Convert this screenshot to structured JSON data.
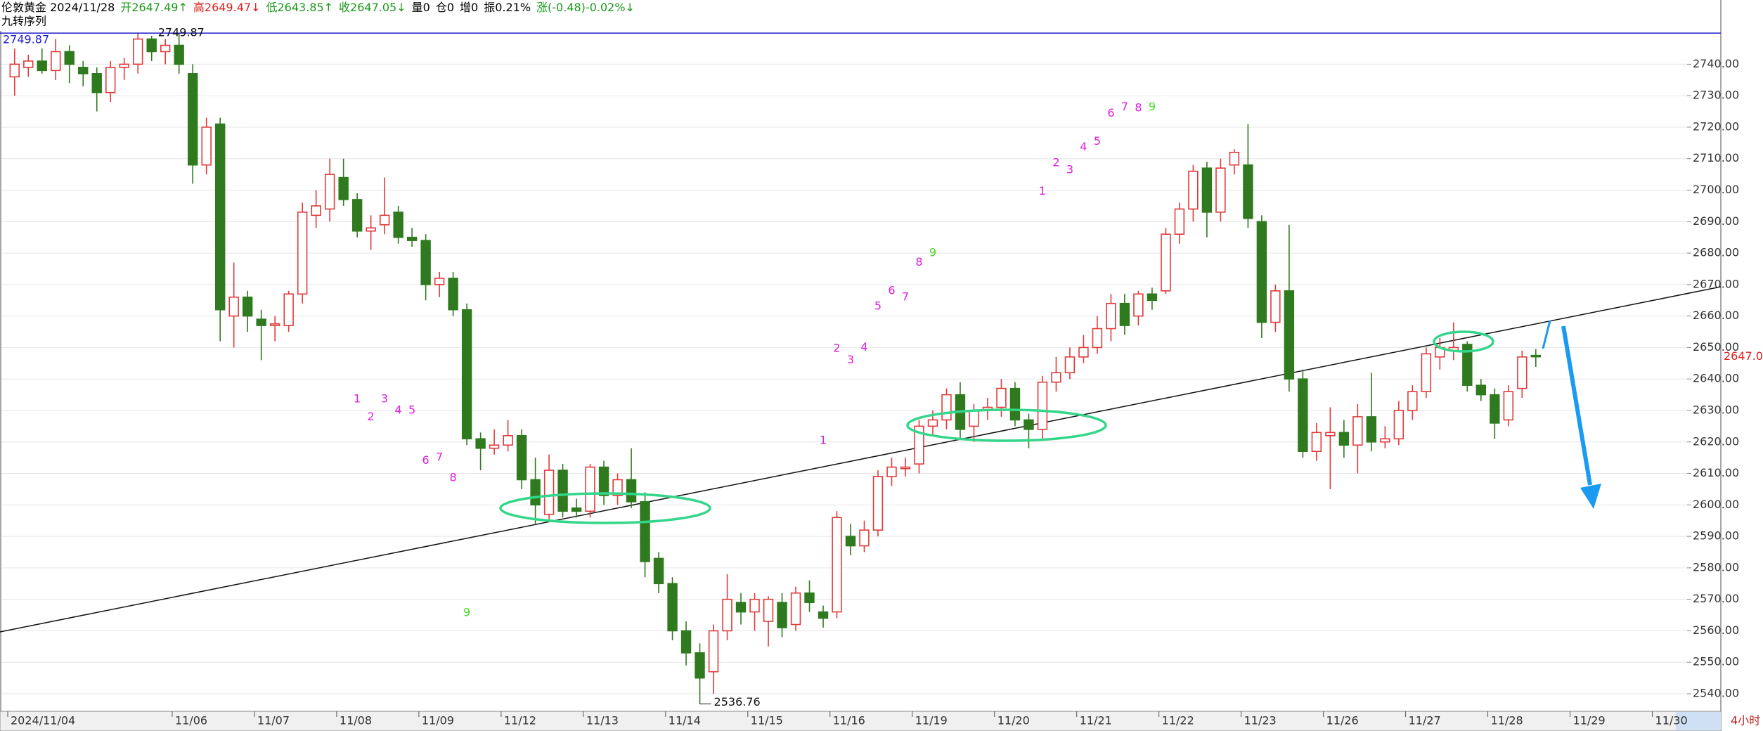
{
  "header": [
    {
      "text": "伦敦黄金 2024/11/28",
      "color": "#000000"
    },
    {
      "text": "开2647.49↑",
      "color": "#1a9a1a"
    },
    {
      "text": "高2649.47↓",
      "color": "#e02020"
    },
    {
      "text": "低2643.85↑",
      "color": "#1a9a1a"
    },
    {
      "text": "收2647.05↓",
      "color": "#1a9a1a"
    },
    {
      "text": "量0",
      "color": "#000000"
    },
    {
      "text": "仓0",
      "color": "#000000"
    },
    {
      "text": "增0",
      "color": "#000000"
    },
    {
      "text": "振0.21%",
      "color": "#000000"
    },
    {
      "text": "涨(-0.48)-0.02%↓",
      "color": "#1a9a1a"
    }
  ],
  "indicator": "九转序列",
  "period": "4小时",
  "chart_data": {
    "type": "candlestick",
    "up_color": "#e03a3a",
    "down_color": "#2f7a1f",
    "td_color": "#e020e0",
    "td_nine_color": "#44dd22",
    "max_line_color": "#2020cc",
    "ylim": [
      2534.6,
      2750.4
    ],
    "yticks": [
      {
        "value": 2540,
        "label": "2540.00"
      },
      {
        "value": 2550,
        "label": "2550.00"
      },
      {
        "value": 2560,
        "label": "2560.00"
      },
      {
        "value": 2570,
        "label": "2570.00"
      },
      {
        "value": 2580,
        "label": "2580.00"
      },
      {
        "value": 2590,
        "label": "2590.00"
      },
      {
        "value": 2600,
        "label": "2600.00"
      },
      {
        "value": 2610,
        "label": "2610.00"
      },
      {
        "value": 2620,
        "label": "2620.00"
      },
      {
        "value": 2630,
        "label": "2630.00"
      },
      {
        "value": 2640,
        "label": "2640.00"
      },
      {
        "value": 2650,
        "label": "2650.00"
      },
      {
        "value": 2660,
        "label": "2660.00"
      },
      {
        "value": 2670,
        "label": "2670.00"
      },
      {
        "value": 2680,
        "label": "2680.00"
      },
      {
        "value": 2690,
        "label": "2690.00"
      },
      {
        "value": 2700,
        "label": "2700.00"
      },
      {
        "value": 2710,
        "label": "2710.00"
      },
      {
        "value": 2720,
        "label": "2720.00"
      },
      {
        "value": 2730,
        "label": "2730.00"
      },
      {
        "value": 2740,
        "label": "2740.00"
      }
    ],
    "grid": true,
    "categories": [
      "2024/11/04",
      null,
      null,
      null,
      null,
      null,
      null,
      null,
      null,
      null,
      null,
      null,
      "11/06",
      null,
      null,
      null,
      null,
      null,
      "11/07",
      null,
      null,
      null,
      null,
      null,
      "11/08",
      null,
      null,
      null,
      null,
      null,
      "11/09",
      null,
      null,
      null,
      null,
      null,
      "11/12",
      null,
      null,
      null,
      null,
      null,
      "11/13",
      null,
      null,
      null,
      null,
      null,
      "11/14",
      null,
      null,
      null,
      null,
      null,
      "11/15",
      null,
      null,
      null,
      null,
      null,
      "11/16",
      null,
      null,
      null,
      null,
      null,
      "11/19",
      null,
      null,
      null,
      null,
      null,
      "11/20",
      null,
      null,
      null,
      null,
      null,
      "11/21",
      null,
      null,
      null,
      null,
      null,
      "11/22",
      null,
      null,
      null,
      null,
      null,
      "11/23",
      null,
      null,
      null,
      null,
      null,
      "11/26",
      null,
      null,
      null,
      null,
      null,
      "11/27",
      null,
      null,
      null,
      null,
      null,
      "11/28",
      null,
      null,
      null,
      null,
      null,
      "11/29",
      null,
      null,
      null,
      null,
      null,
      "11/30",
      null,
      null,
      null,
      null
    ],
    "ohlc": [
      [
        2736,
        2745,
        2730,
        2740
      ],
      [
        2739,
        2743,
        2736,
        2741
      ],
      [
        2741,
        2745,
        2737,
        2738
      ],
      [
        2738,
        2748,
        2735,
        2744
      ],
      [
        2744,
        2746,
        2734,
        2740
      ],
      [
        2739,
        2741,
        2733,
        2737
      ],
      [
        2737,
        2739,
        2725,
        2731
      ],
      [
        2731,
        2741,
        2728,
        2739
      ],
      [
        2739,
        2742,
        2735,
        2740
      ],
      [
        2740,
        2750,
        2737,
        2748
      ],
      [
        2748,
        2749,
        2741,
        2744
      ],
      [
        2744,
        2748,
        2740,
        2746
      ],
      [
        2746,
        2749.87,
        2737,
        2740
      ],
      [
        2737,
        2740,
        2702,
        2708
      ],
      [
        2708,
        2723,
        2705,
        2720
      ],
      [
        2721,
        2723,
        2652,
        2662
      ],
      [
        2660,
        2677,
        2650,
        2666
      ],
      [
        2666,
        2668,
        2655,
        2660
      ],
      [
        2659,
        2662,
        2646,
        2657
      ],
      [
        2657,
        2660,
        2652,
        2657.5
      ],
      [
        2657,
        2668,
        2655,
        2667
      ],
      [
        2667,
        2696,
        2664,
        2693
      ],
      [
        2692,
        2700,
        2688,
        2695
      ],
      [
        2694,
        2710,
        2690,
        2705
      ],
      [
        2704,
        2710,
        2695,
        2697
      ],
      [
        2697,
        2699,
        2685,
        2687
      ],
      [
        2687,
        2692,
        2681,
        2688
      ],
      [
        2689,
        2704,
        2686,
        2692
      ],
      [
        2693,
        2695,
        2683,
        2685
      ],
      [
        2685,
        2688,
        2682,
        2684
      ],
      [
        2684,
        2686,
        2665,
        2670
      ],
      [
        2670,
        2674,
        2666,
        2672
      ],
      [
        2672,
        2674,
        2660,
        2662
      ],
      [
        2662,
        2664,
        2619,
        2621
      ],
      [
        2621,
        2623,
        2611,
        2618
      ],
      [
        2618,
        2624,
        2616,
        2619
      ],
      [
        2619,
        2627,
        2617,
        2622
      ],
      [
        2622,
        2624,
        2605,
        2608
      ],
      [
        2608,
        2615,
        2594,
        2600
      ],
      [
        2597,
        2616,
        2595,
        2611
      ],
      [
        2611,
        2613,
        2596,
        2598
      ],
      [
        2599,
        2602,
        2596,
        2598
      ],
      [
        2598,
        2613,
        2596,
        2612
      ],
      [
        2612,
        2614,
        2600,
        2603
      ],
      [
        2603,
        2610,
        2600,
        2608
      ],
      [
        2608,
        2618,
        2599,
        2601
      ],
      [
        2601,
        2604,
        2577,
        2582
      ],
      [
        2583,
        2585,
        2572,
        2575
      ],
      [
        2575,
        2577,
        2557,
        2560
      ],
      [
        2560,
        2563,
        2549,
        2553
      ],
      [
        2553,
        2556,
        2536.76,
        2545
      ],
      [
        2547,
        2562,
        2540,
        2560
      ],
      [
        2560,
        2578,
        2557,
        2570
      ],
      [
        2569,
        2572,
        2562,
        2566
      ],
      [
        2566,
        2572,
        2560,
        2570
      ],
      [
        2563,
        2571,
        2555,
        2570
      ],
      [
        2569,
        2572,
        2558,
        2561
      ],
      [
        2562,
        2574,
        2560,
        2572
      ],
      [
        2572,
        2576,
        2566,
        2569
      ],
      [
        2566,
        2568,
        2561,
        2564
      ],
      [
        2566,
        2598,
        2564,
        2596
      ],
      [
        2590,
        2594,
        2584,
        2587
      ],
      [
        2587,
        2595,
        2585,
        2592
      ],
      [
        2592,
        2611,
        2590,
        2609
      ],
      [
        2609,
        2615,
        2606,
        2612
      ],
      [
        2611.5,
        2615,
        2609,
        2612
      ],
      [
        2613,
        2627,
        2610,
        2625
      ],
      [
        2625,
        2630,
        2622,
        2627
      ],
      [
        2627,
        2637,
        2624,
        2635
      ],
      [
        2635,
        2639,
        2621,
        2624
      ],
      [
        2625,
        2632,
        2620,
        2630
      ],
      [
        2630,
        2634,
        2627,
        2631
      ],
      [
        2631,
        2640,
        2628,
        2637
      ],
      [
        2637,
        2639,
        2625,
        2627
      ],
      [
        2627,
        2629,
        2618,
        2624
      ],
      [
        2624,
        2641,
        2621,
        2639
      ],
      [
        2639,
        2647,
        2636,
        2642
      ],
      [
        2642,
        2650,
        2640,
        2647
      ],
      [
        2647,
        2654,
        2645,
        2650
      ],
      [
        2650,
        2660,
        2648,
        2656
      ],
      [
        2656,
        2667,
        2652,
        2664
      ],
      [
        2664,
        2667,
        2654,
        2657
      ],
      [
        2660,
        2668,
        2657,
        2667
      ],
      [
        2667,
        2669,
        2662,
        2665
      ],
      [
        2668,
        2688,
        2667,
        2686
      ],
      [
        2686,
        2696,
        2683,
        2694
      ],
      [
        2694,
        2708,
        2690,
        2706
      ],
      [
        2707,
        2709,
        2685,
        2693
      ],
      [
        2693,
        2710,
        2690,
        2707
      ],
      [
        2708,
        2713,
        2705,
        2712
      ],
      [
        2708,
        2721,
        2688,
        2691
      ],
      [
        2690,
        2692,
        2653,
        2658
      ],
      [
        2658,
        2670,
        2655,
        2668
      ],
      [
        2668,
        2689,
        2636,
        2640
      ],
      [
        2640,
        2643,
        2615,
        2617
      ],
      [
        2617,
        2626,
        2614,
        2623
      ],
      [
        2622,
        2631,
        2605,
        2623
      ],
      [
        2623,
        2627,
        2615,
        2619
      ],
      [
        2619,
        2632,
        2610,
        2628
      ],
      [
        2628,
        2642,
        2617,
        2620
      ],
      [
        2620,
        2625,
        2618,
        2621
      ],
      [
        2621,
        2633,
        2619,
        2630
      ],
      [
        2630,
        2638,
        2627,
        2636
      ],
      [
        2636,
        2650,
        2634,
        2648
      ],
      [
        2647,
        2653,
        2643,
        2650
      ],
      [
        2649,
        2658,
        2646,
        2650
      ],
      [
        2651,
        2652,
        2636,
        2638
      ],
      [
        2638,
        2640,
        2633,
        2635
      ],
      [
        2635,
        2637,
        2621,
        2626
      ],
      [
        2627,
        2638,
        2625,
        2636
      ],
      [
        2637,
        2649,
        2634,
        2647
      ],
      [
        2647.49,
        2649.47,
        2643.85,
        2647.05
      ],
      null,
      null,
      null,
      null,
      null,
      null,
      null,
      null,
      null,
      null,
      null,
      null,
      null
    ],
    "td_counts": [
      null,
      null,
      null,
      null,
      null,
      null,
      null,
      null,
      null,
      null,
      null,
      null,
      null,
      null,
      null,
      null,
      null,
      null,
      null,
      null,
      null,
      null,
      null,
      null,
      null,
      1,
      2,
      3,
      4,
      5,
      6,
      7,
      8,
      9,
      null,
      null,
      null,
      null,
      null,
      null,
      null,
      null,
      null,
      null,
      null,
      null,
      null,
      null,
      null,
      null,
      null,
      null,
      null,
      null,
      null,
      null,
      null,
      null,
      null,
      1,
      2,
      3,
      4,
      5,
      6,
      7,
      8,
      9,
      null,
      null,
      null,
      null,
      null,
      null,
      null,
      1,
      2,
      3,
      4,
      5,
      6,
      7,
      8,
      9,
      null,
      null,
      null,
      null,
      null,
      null,
      null,
      null,
      null,
      null,
      null,
      null,
      null,
      null,
      null,
      null,
      null,
      null,
      null,
      null,
      null,
      null,
      null,
      null,
      null,
      null,
      null,
      null,
      null,
      null,
      null,
      null,
      null,
      null,
      null,
      null,
      null,
      null,
      null,
      null,
      null
    ],
    "td_levels": [
      null,
      null,
      null,
      null,
      null,
      null,
      null,
      null,
      null,
      null,
      null,
      null,
      null,
      null,
      null,
      null,
      null,
      null,
      null,
      null,
      null,
      null,
      null,
      null,
      null,
      2633.6,
      2627.9,
      2633.6,
      2630,
      2630,
      2614,
      2615,
      2608.6,
      2565.7,
      null,
      null,
      null,
      null,
      null,
      null,
      null,
      null,
      null,
      null,
      null,
      null,
      null,
      null,
      null,
      null,
      null,
      null,
      null,
      null,
      null,
      null,
      null,
      null,
      null,
      2620.4,
      2649.6,
      2646,
      2650,
      2663,
      2668,
      2666,
      2677,
      2680,
      null,
      null,
      null,
      null,
      null,
      null,
      null,
      2699.6,
      2708.6,
      2706.4,
      2713.6,
      2715.4,
      2724.3,
      2726.4,
      2726,
      2726.4,
      null,
      null,
      null,
      null,
      null,
      null,
      null,
      null,
      null,
      null,
      null,
      null,
      null,
      null,
      null,
      null,
      null,
      null,
      null,
      null,
      null,
      null,
      null,
      null,
      null,
      null,
      null,
      null,
      null,
      null,
      null,
      null,
      null,
      null,
      null,
      null,
      null,
      null,
      null,
      null,
      null
    ]
  }
}
